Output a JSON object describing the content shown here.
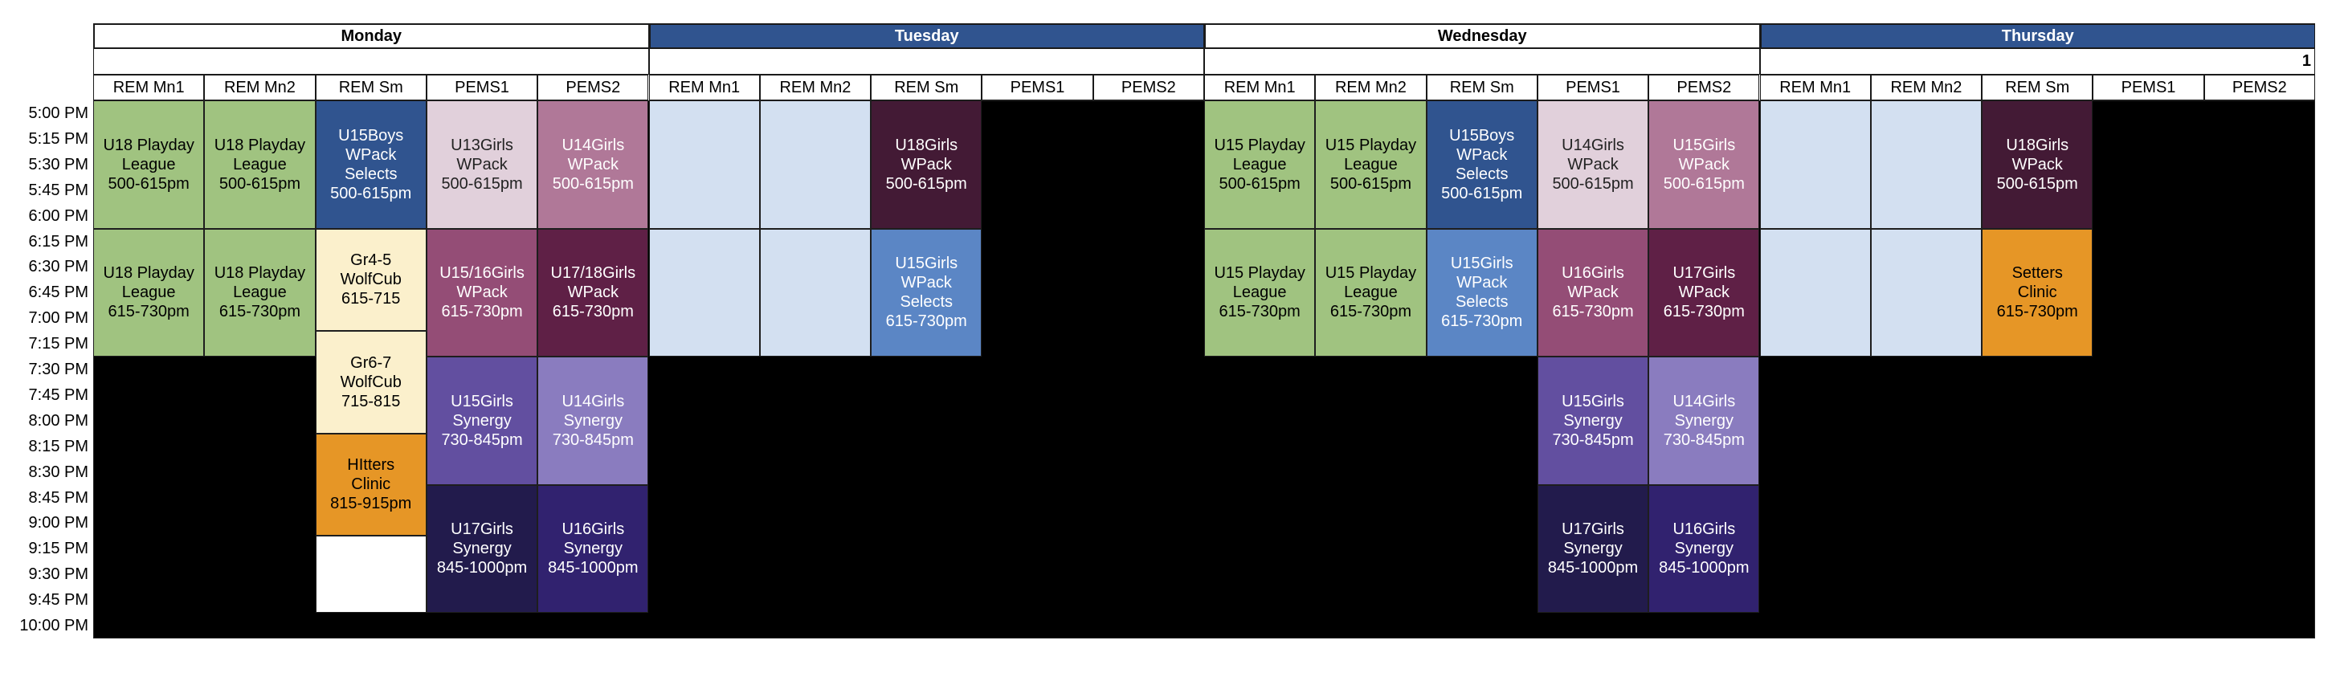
{
  "times": [
    "5:00 PM",
    "5:15 PM",
    "5:30 PM",
    "5:45 PM",
    "6:00 PM",
    "6:15 PM",
    "6:30 PM",
    "6:45 PM",
    "7:00 PM",
    "7:15 PM",
    "7:30 PM",
    "7:45 PM",
    "8:00 PM",
    "8:15 PM",
    "8:30 PM",
    "8:45 PM",
    "9:00 PM",
    "9:15 PM",
    "9:30 PM",
    "9:45 PM",
    "10:00 PM"
  ],
  "colors": {
    "grid_background": "#000000",
    "header_blue": "#30548f",
    "green": "#a0c380",
    "dark_blue": "#30548f",
    "light_pink": "#e1d0db",
    "mauve": "#b07898",
    "magenta": "#944d76",
    "wine": "#5f2046",
    "plum": "#431a35",
    "purple": "#624fa0",
    "lavender": "#8a7cbf",
    "navy": "#221b4c",
    "indigo": "#31226f",
    "cream": "#fbf0cc",
    "orange": "#e69626",
    "light_blue": "#d3e0f1",
    "medium_blue": "#5b86c5",
    "white": "#ffffff"
  },
  "days": [
    {
      "name": "Monday",
      "header_bg": "#ffffff",
      "header_fg": "#000000",
      "note": "",
      "columns": [
        "REM Mn1",
        "REM Mn2",
        "REM Sm",
        "PEMS1",
        "PEMS2"
      ],
      "events": [
        {
          "col": 0,
          "start": "5:00 PM",
          "end": "6:15 PM",
          "bg": "#a0c380",
          "fg": "#000",
          "lines": [
            "U18 Playday",
            "League",
            "500-615pm"
          ]
        },
        {
          "col": 1,
          "start": "5:00 PM",
          "end": "6:15 PM",
          "bg": "#a0c380",
          "fg": "#000",
          "lines": [
            "U18 Playday",
            "League",
            "500-615pm"
          ]
        },
        {
          "col": 2,
          "start": "5:00 PM",
          "end": "6:15 PM",
          "bg": "#30548f",
          "fg": "#fff",
          "lines": [
            "U15Boys",
            "WPack",
            "Selects",
            "500-615pm"
          ]
        },
        {
          "col": 3,
          "start": "5:00 PM",
          "end": "6:15 PM",
          "bg": "#e1d0db",
          "fg": "#222",
          "lines": [
            "U13Girls",
            "WPack",
            "500-615pm"
          ]
        },
        {
          "col": 4,
          "start": "5:00 PM",
          "end": "6:15 PM",
          "bg": "#b07898",
          "fg": "#fff",
          "lines": [
            "U14Girls",
            "WPack",
            "500-615pm"
          ]
        },
        {
          "col": 0,
          "start": "6:15 PM",
          "end": "7:30 PM",
          "bg": "#a0c380",
          "fg": "#000",
          "lines": [
            "U18 Playday",
            "League",
            "615-730pm"
          ]
        },
        {
          "col": 1,
          "start": "6:15 PM",
          "end": "7:30 PM",
          "bg": "#a0c380",
          "fg": "#000",
          "lines": [
            "U18 Playday",
            "League",
            "615-730pm"
          ]
        },
        {
          "col": 2,
          "start": "6:15 PM",
          "end": "7:15 PM",
          "bg": "#fbf0cc",
          "fg": "#000",
          "lines": [
            "Gr4-5",
            "WolfCub",
            "615-715"
          ]
        },
        {
          "col": 2,
          "start": "7:15 PM",
          "end": "8:15 PM",
          "bg": "#fbf0cc",
          "fg": "#000",
          "lines": [
            "Gr6-7",
            "WolfCub",
            "715-815"
          ]
        },
        {
          "col": 2,
          "start": "8:15 PM",
          "end": "9:15 PM",
          "bg": "#e69626",
          "fg": "#000",
          "lines": [
            "HItters",
            "Clinic",
            "815-915pm"
          ]
        },
        {
          "col": 2,
          "start": "9:15 PM",
          "end": "10:00 PM",
          "bg": "#ffffff",
          "fg": "#000",
          "lines": []
        },
        {
          "col": 3,
          "start": "6:15 PM",
          "end": "7:30 PM",
          "bg": "#944d76",
          "fg": "#fff",
          "lines": [
            "U15/16Girls",
            "WPack",
            "615-730pm"
          ]
        },
        {
          "col": 4,
          "start": "6:15 PM",
          "end": "7:30 PM",
          "bg": "#5f2046",
          "fg": "#fff",
          "lines": [
            "U17/18Girls",
            "WPack",
            "615-730pm"
          ]
        },
        {
          "col": 3,
          "start": "7:30 PM",
          "end": "8:45 PM",
          "bg": "#624fa0",
          "fg": "#fff",
          "lines": [
            "U15Girls",
            "Synergy",
            "730-845pm"
          ]
        },
        {
          "col": 4,
          "start": "7:30 PM",
          "end": "8:45 PM",
          "bg": "#8a7cbf",
          "fg": "#fff",
          "lines": [
            "U14Girls",
            "Synergy",
            "730-845pm"
          ]
        },
        {
          "col": 3,
          "start": "8:45 PM",
          "end": "10:00 PM",
          "bg": "#221b4c",
          "fg": "#fff",
          "lines": [
            "U17Girls",
            "Synergy",
            "845-1000pm"
          ]
        },
        {
          "col": 4,
          "start": "8:45 PM",
          "end": "10:00 PM",
          "bg": "#31226f",
          "fg": "#fff",
          "lines": [
            "U16Girls",
            "Synergy",
            "845-1000pm"
          ]
        }
      ]
    },
    {
      "name": "Tuesday",
      "header_bg": "#30548f",
      "header_fg": "#ffffff",
      "note": "",
      "columns": [
        "REM Mn1",
        "REM Mn2",
        "REM Sm",
        "PEMS1",
        "PEMS2"
      ],
      "events": [
        {
          "col": 0,
          "start": "5:00 PM",
          "end": "6:15 PM",
          "bg": "#d3e0f1",
          "fg": "#000",
          "lines": []
        },
        {
          "col": 1,
          "start": "5:00 PM",
          "end": "6:15 PM",
          "bg": "#d3e0f1",
          "fg": "#000",
          "lines": []
        },
        {
          "col": 2,
          "start": "5:00 PM",
          "end": "6:15 PM",
          "bg": "#431a35",
          "fg": "#fff",
          "lines": [
            "U18Girls",
            "WPack",
            "500-615pm"
          ]
        },
        {
          "col": 0,
          "start": "6:15 PM",
          "end": "7:30 PM",
          "bg": "#d3e0f1",
          "fg": "#000",
          "lines": []
        },
        {
          "col": 1,
          "start": "6:15 PM",
          "end": "7:30 PM",
          "bg": "#d3e0f1",
          "fg": "#000",
          "lines": []
        },
        {
          "col": 2,
          "start": "6:15 PM",
          "end": "7:30 PM",
          "bg": "#5b86c5",
          "fg": "#fff",
          "lines": [
            "U15Girls",
            "WPack",
            "Selects",
            "615-730pm"
          ]
        }
      ]
    },
    {
      "name": "Wednesday",
      "header_bg": "#ffffff",
      "header_fg": "#000000",
      "note": "",
      "columns": [
        "REM Mn1",
        "REM Mn2",
        "REM Sm",
        "PEMS1",
        "PEMS2"
      ],
      "events": [
        {
          "col": 0,
          "start": "5:00 PM",
          "end": "6:15 PM",
          "bg": "#a0c380",
          "fg": "#000",
          "lines": [
            "U15 Playday",
            "League",
            "500-615pm"
          ]
        },
        {
          "col": 1,
          "start": "5:00 PM",
          "end": "6:15 PM",
          "bg": "#a0c380",
          "fg": "#000",
          "lines": [
            "U15 Playday",
            "League",
            "500-615pm"
          ]
        },
        {
          "col": 2,
          "start": "5:00 PM",
          "end": "6:15 PM",
          "bg": "#30548f",
          "fg": "#fff",
          "lines": [
            "U15Boys",
            "WPack",
            "Selects",
            "500-615pm"
          ]
        },
        {
          "col": 3,
          "start": "5:00 PM",
          "end": "6:15 PM",
          "bg": "#e1d0db",
          "fg": "#222",
          "lines": [
            "U14Girls",
            "WPack",
            "500-615pm"
          ]
        },
        {
          "col": 4,
          "start": "5:00 PM",
          "end": "6:15 PM",
          "bg": "#b07898",
          "fg": "#fff",
          "lines": [
            "U15Girls",
            "WPack",
            "500-615pm"
          ]
        },
        {
          "col": 0,
          "start": "6:15 PM",
          "end": "7:30 PM",
          "bg": "#a0c380",
          "fg": "#000",
          "lines": [
            "U15 Playday",
            "League",
            "615-730pm"
          ]
        },
        {
          "col": 1,
          "start": "6:15 PM",
          "end": "7:30 PM",
          "bg": "#a0c380",
          "fg": "#000",
          "lines": [
            "U15 Playday",
            "League",
            "615-730pm"
          ]
        },
        {
          "col": 2,
          "start": "6:15 PM",
          "end": "7:30 PM",
          "bg": "#5b86c5",
          "fg": "#fff",
          "lines": [
            "U15Girls",
            "WPack",
            "Selects",
            "615-730pm"
          ]
        },
        {
          "col": 3,
          "start": "6:15 PM",
          "end": "7:30 PM",
          "bg": "#944d76",
          "fg": "#fff",
          "lines": [
            "U16Girls",
            "WPack",
            "615-730pm"
          ]
        },
        {
          "col": 4,
          "start": "6:15 PM",
          "end": "7:30 PM",
          "bg": "#5f2046",
          "fg": "#fff",
          "lines": [
            "U17Girls",
            "WPack",
            "615-730pm"
          ]
        },
        {
          "col": 3,
          "start": "7:30 PM",
          "end": "8:45 PM",
          "bg": "#624fa0",
          "fg": "#fff",
          "lines": [
            "U15Girls",
            "Synergy",
            "730-845pm"
          ]
        },
        {
          "col": 4,
          "start": "7:30 PM",
          "end": "8:45 PM",
          "bg": "#8a7cbf",
          "fg": "#fff",
          "lines": [
            "U14Girls",
            "Synergy",
            "730-845pm"
          ]
        },
        {
          "col": 3,
          "start": "8:45 PM",
          "end": "10:00 PM",
          "bg": "#221b4c",
          "fg": "#fff",
          "lines": [
            "U17Girls",
            "Synergy",
            "845-1000pm"
          ]
        },
        {
          "col": 4,
          "start": "8:45 PM",
          "end": "10:00 PM",
          "bg": "#31226f",
          "fg": "#fff",
          "lines": [
            "U16Girls",
            "Synergy",
            "845-1000pm"
          ]
        }
      ]
    },
    {
      "name": "Thursday",
      "header_bg": "#30548f",
      "header_fg": "#ffffff",
      "note": "1",
      "columns": [
        "REM Mn1",
        "REM Mn2",
        "REM Sm",
        "PEMS1",
        "PEMS2"
      ],
      "events": [
        {
          "col": 0,
          "start": "5:00 PM",
          "end": "6:15 PM",
          "bg": "#d3e0f1",
          "fg": "#000",
          "lines": []
        },
        {
          "col": 1,
          "start": "5:00 PM",
          "end": "6:15 PM",
          "bg": "#d3e0f1",
          "fg": "#000",
          "lines": []
        },
        {
          "col": 2,
          "start": "5:00 PM",
          "end": "6:15 PM",
          "bg": "#431a35",
          "fg": "#fff",
          "lines": [
            "U18Girls",
            "WPack",
            "500-615pm"
          ]
        },
        {
          "col": 0,
          "start": "6:15 PM",
          "end": "7:30 PM",
          "bg": "#d3e0f1",
          "fg": "#000",
          "lines": []
        },
        {
          "col": 1,
          "start": "6:15 PM",
          "end": "7:30 PM",
          "bg": "#d3e0f1",
          "fg": "#000",
          "lines": []
        },
        {
          "col": 2,
          "start": "6:15 PM",
          "end": "7:30 PM",
          "bg": "#e69626",
          "fg": "#000",
          "lines": [
            "Setters",
            "Clinic",
            "615-730pm"
          ]
        }
      ]
    }
  ]
}
